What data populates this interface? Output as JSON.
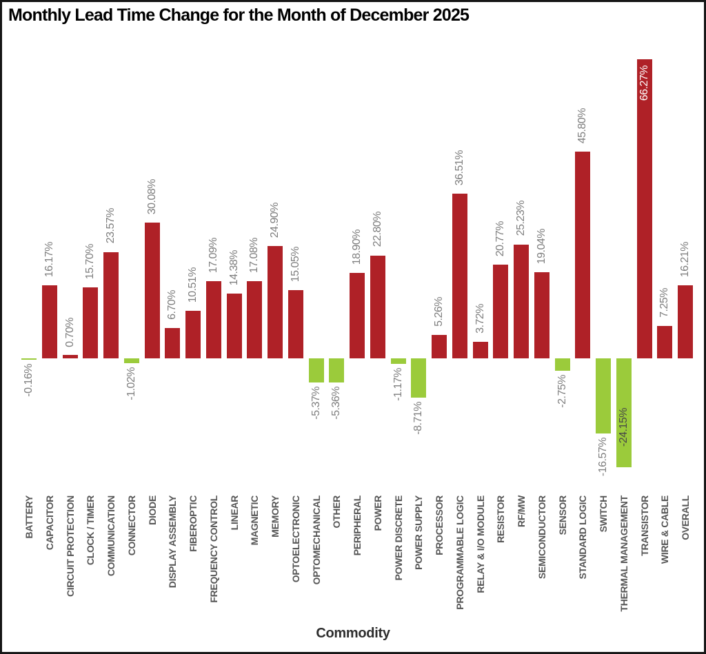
{
  "chart_data": {
    "type": "bar",
    "title": "Monthly Lead Time Change for the Month of December 2025",
    "xlabel": "Commodity",
    "ylabel": "",
    "categories": [
      "BATTERY",
      "CAPACITOR",
      "CIRCUIT PROTECTION",
      "CLOCK / TIMER",
      "COMMUNICATION",
      "CONNECTOR",
      "DIODE",
      "DISPLAY ASSEMBLY",
      "FIBEROPTIC",
      "FREQUENCY CONTROL",
      "LINEAR",
      "MAGNETIC",
      "MEMORY",
      "OPTOELECTRONIC",
      "OPTOMECHANICAL",
      "OTHER",
      "PERIPHERAL",
      "POWER",
      "POWER DISCRETE",
      "POWER SUPPLY",
      "PROCESSOR",
      "PROGRAMMABLE LOGIC",
      "RELAY & I/O MODULE",
      "RESISTOR",
      "RF/MW",
      "SEMICONDUCTOR",
      "SENSOR",
      "STANDARD LOGIC",
      "SWITCH",
      "THERMAL MANAGEMENT",
      "TRANSISTOR",
      "WIRE & CABLE",
      "OVERALL"
    ],
    "values": [
      -0.16,
      16.17,
      0.7,
      15.7,
      23.57,
      -1.02,
      30.08,
      6.7,
      10.51,
      17.09,
      14.38,
      17.08,
      24.9,
      15.05,
      -5.37,
      -5.36,
      18.9,
      22.8,
      -1.17,
      -8.71,
      5.26,
      36.51,
      3.72,
      20.77,
      25.23,
      19.04,
      -2.75,
      45.8,
      -16.57,
      -24.15,
      66.27,
      7.25,
      16.21
    ],
    "bar_labels": [
      "-0.16%",
      "16.17%",
      "0.70%",
      "15.70%",
      "23.57%",
      "-1.02%",
      "30.08%",
      "6.70%",
      "10.51%",
      "17.09%",
      "14.38%",
      "17.08%",
      "24.90%",
      "15.05%",
      "-5.37%",
      "-5.36%",
      "18.90%",
      "22.80%",
      "-1.17%",
      "-8.71%",
      "5.26%",
      "36.51%",
      "3.72%",
      "20.77%",
      "25.23%",
      "19.04%",
      "-2.75%",
      "45.80%",
      "-16.57%",
      "-24.15%",
      "66.27%",
      "7.25%",
      "16.21%"
    ],
    "ylim": [
      -30,
      72
    ],
    "grid": false,
    "legend": false,
    "bar_label_rotation": 90,
    "tick_label_rotation": 90,
    "colors": {
      "positive_bar": "#af2127",
      "negative_bar": "#9bcb3b",
      "bar_label": "#7e7e7e",
      "bar_label_inside_positive": "#ffffff",
      "bar_label_inside_negative": "#474747",
      "tick_label": "#565656",
      "title": "#000000",
      "xlabel": "#2e2e2e",
      "frame": "#161616",
      "background": "#ffffff"
    }
  }
}
